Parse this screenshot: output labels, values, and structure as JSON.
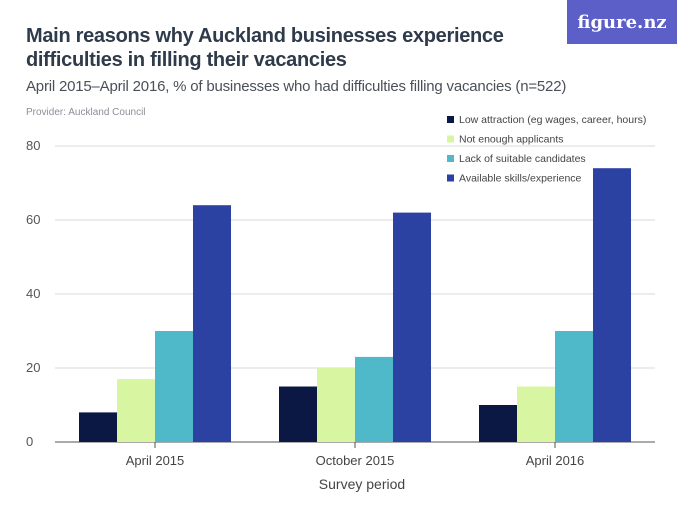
{
  "header": {
    "title": "Main reasons why Auckland businesses experience difficulties in filling their vacancies",
    "subtitle": "April 2015–April 2016, % of businesses who had difficulties filling vacancies (n=522)",
    "provider": "Provider: Auckland Council",
    "logo": "figure.nz"
  },
  "chart_data": {
    "type": "bar",
    "xlabel": "Survey period",
    "ylabel": "",
    "ylim": [
      0,
      80
    ],
    "yticks": [
      0,
      20,
      40,
      60,
      80
    ],
    "grid": true,
    "legend_position": "top-right",
    "categories": [
      "April 2015",
      "October 2015",
      "April 2016"
    ],
    "series": [
      {
        "name": "Low attraction (eg wages, career, hours)",
        "color": "#0c1844",
        "values": [
          8,
          15,
          10
        ]
      },
      {
        "name": "Not enough applicants",
        "color": "#d8f5a2",
        "values": [
          17,
          20,
          15
        ]
      },
      {
        "name": "Lack of suitable candidates",
        "color": "#4fb9c9",
        "values": [
          30,
          23,
          30
        ]
      },
      {
        "name": "Available skills/experience",
        "color": "#2b42a3",
        "values": [
          64,
          62,
          74
        ]
      }
    ]
  }
}
